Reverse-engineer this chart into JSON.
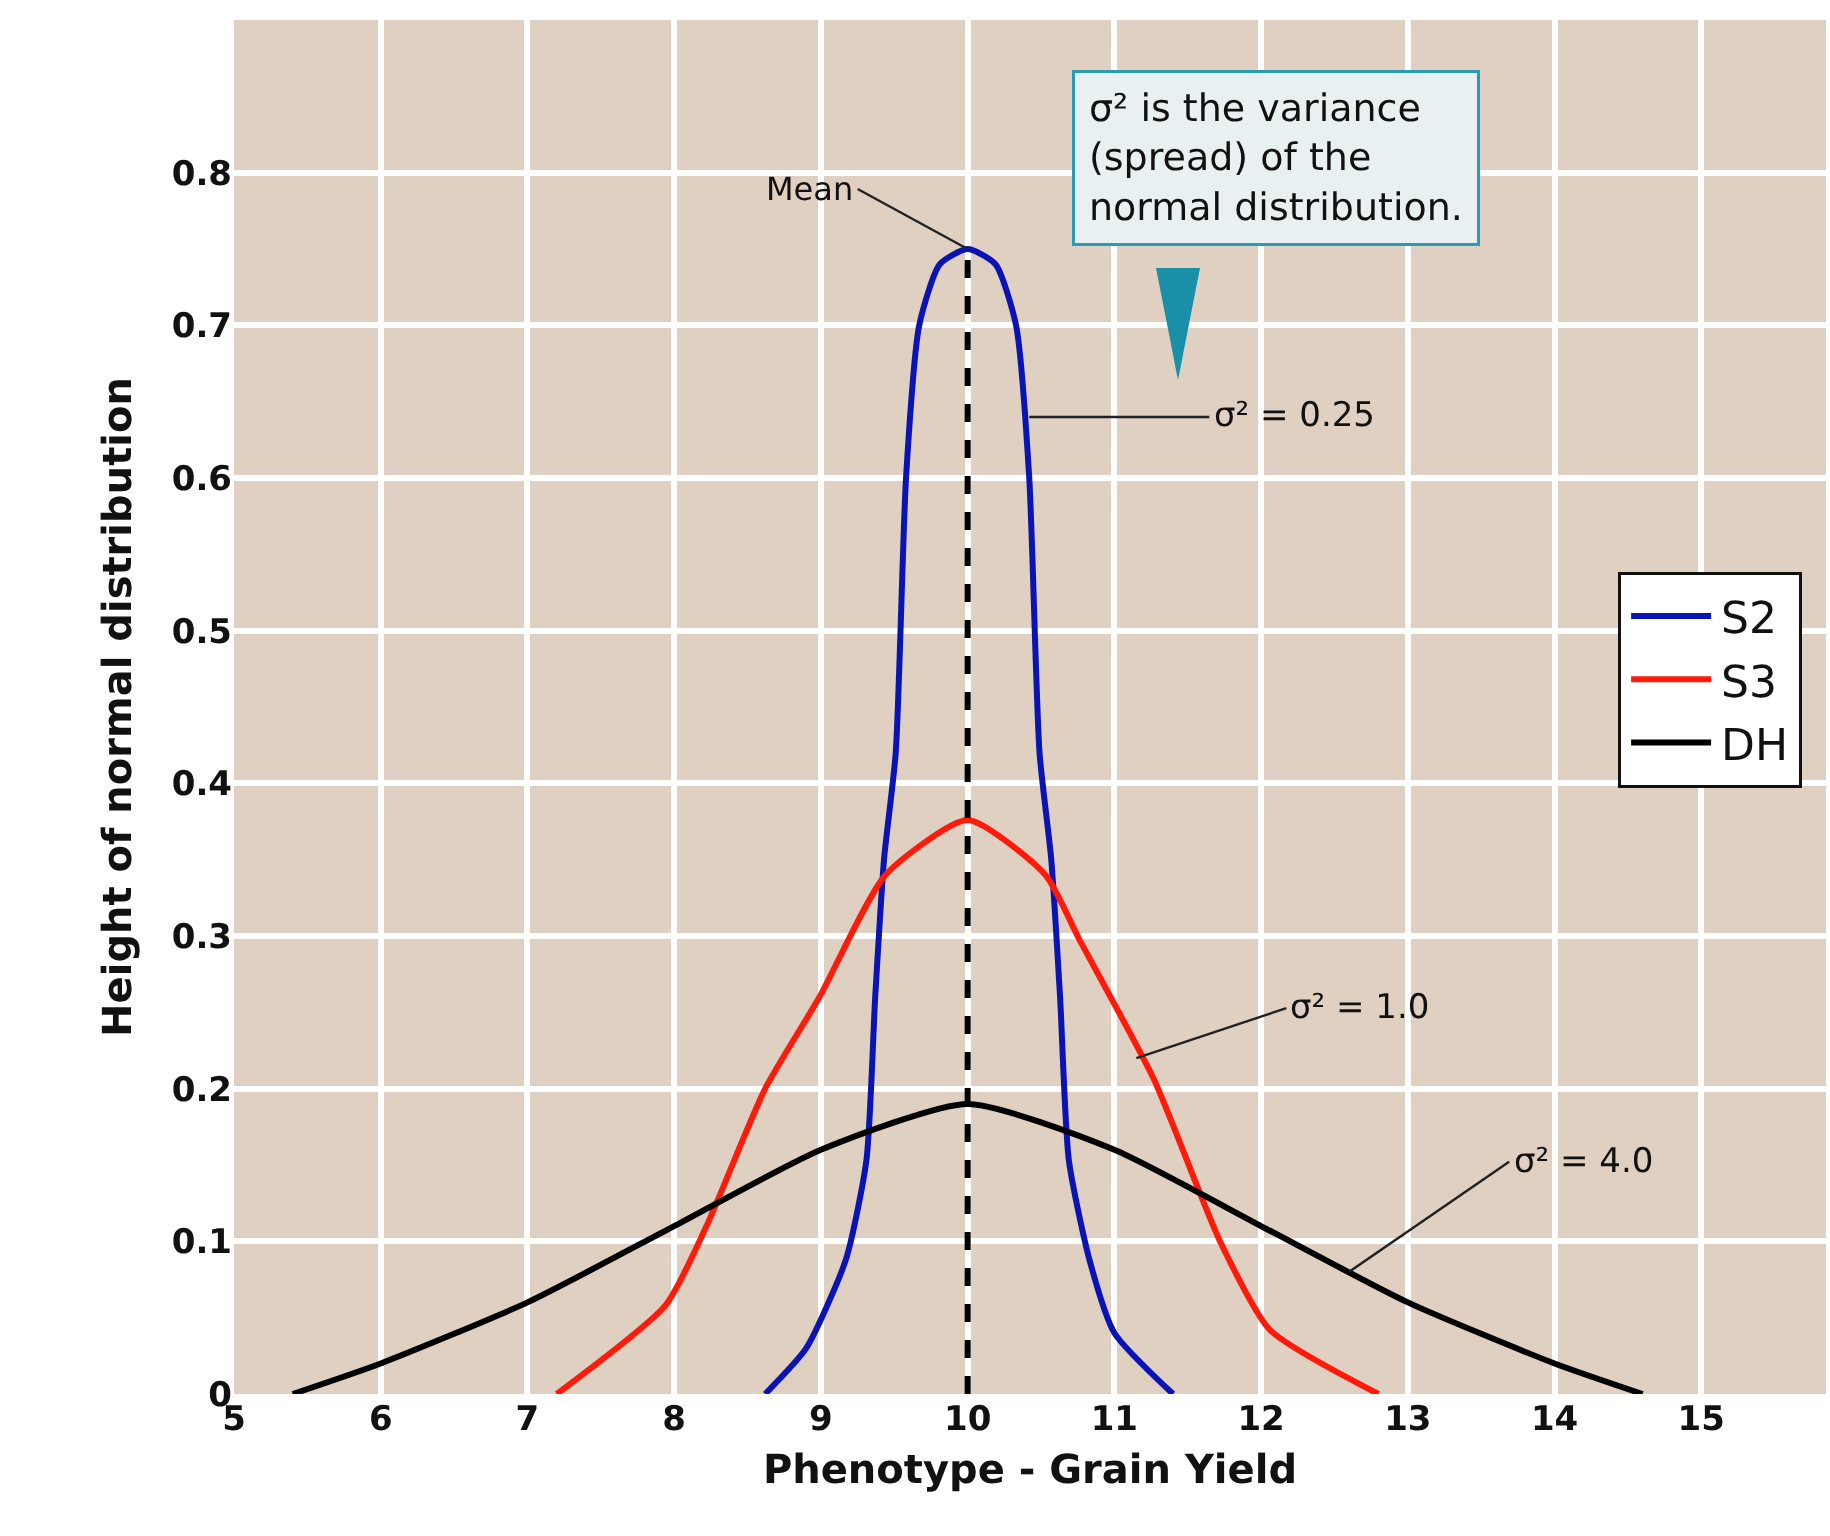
{
  "chart_data": {
    "type": "line",
    "xlabel": "Phenotype - Grain Yield",
    "ylabel": "Height of normal distribution",
    "xlim": [
      5,
      15.85
    ],
    "xticks": [
      5,
      6,
      7,
      8,
      9,
      10,
      11,
      12,
      13,
      14,
      15
    ],
    "ylim": [
      0,
      0.9
    ],
    "yticks": [
      0,
      0.1,
      0.2,
      0.3,
      0.4,
      0.5,
      0.6,
      0.7,
      0.8
    ],
    "grid": true,
    "legend": "right",
    "line_style": "solid",
    "marker": "none",
    "series": [
      {
        "name": "S2",
        "color": "#0a14b4",
        "x": [
          8.62,
          8.9,
          9.17,
          9.31,
          9.37,
          9.43,
          9.51,
          9.58,
          9.67,
          9.81,
          10,
          10.19,
          10.33,
          10.42,
          10.49,
          10.57,
          10.63,
          10.69,
          10.83,
          11.0,
          11.4
        ],
        "values": [
          0,
          0.03,
          0.088,
          0.153,
          0.26,
          0.35,
          0.42,
          0.6,
          0.7,
          0.74,
          0.75,
          0.74,
          0.7,
          0.6,
          0.42,
          0.35,
          0.26,
          0.153,
          0.088,
          0.04,
          0
        ]
      },
      {
        "name": "S3",
        "color": "#ff1a0a",
        "x": [
          7.2,
          7.94,
          8.22,
          8.62,
          8.99,
          9.44,
          10,
          10.53,
          10.76,
          11.27,
          11.72,
          12.06,
          12.8
        ],
        "values": [
          0,
          0.058,
          0.11,
          0.2,
          0.26,
          0.34,
          0.376,
          0.34,
          0.298,
          0.206,
          0.1,
          0.042,
          0
        ]
      },
      {
        "name": "DH",
        "color": "#000000",
        "x": [
          5.4,
          6,
          7,
          8,
          9,
          10,
          11,
          12,
          13,
          14,
          14.6
        ],
        "values": [
          0,
          0.02,
          0.06,
          0.11,
          0.16,
          0.19,
          0.16,
          0.11,
          0.06,
          0.02,
          0
        ]
      }
    ],
    "ref_lines": [
      {
        "axis": "x",
        "value": 10,
        "label": "Mean",
        "line_style": "dashed",
        "color": "#000000"
      }
    ],
    "annotations": [
      "σ² is the variance (spread) of the normal distribution.",
      {
        "text": "σ² = 0.25",
        "x": 10.42,
        "y": 0.64
      },
      {
        "text": "σ² = 1.0",
        "x": 11.15,
        "y": 0.22
      },
      {
        "text": "σ² = 4.0",
        "x": 12.6,
        "y": 0.08
      }
    ]
  }
}
